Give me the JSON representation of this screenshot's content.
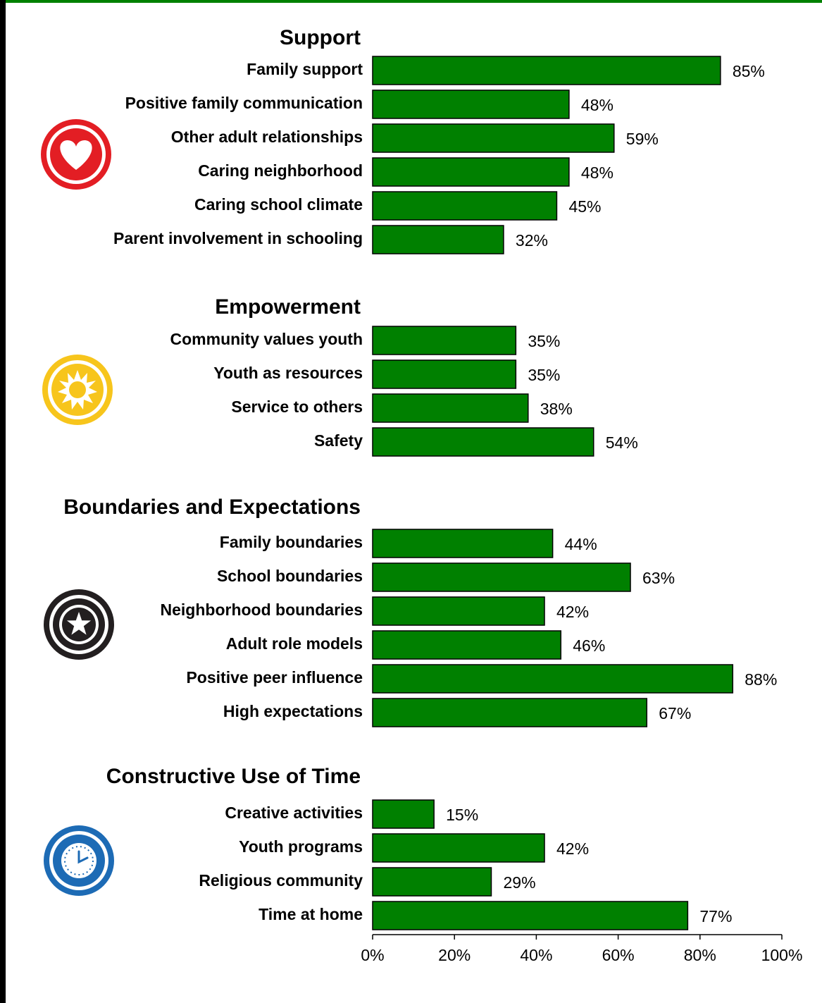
{
  "chart_data": {
    "type": "bar",
    "color": "#008000",
    "groups": [
      {
        "title": "Support",
        "categories": [
          "Family support",
          "Positive family communication",
          "Other adult relationships",
          "Caring neighborhood",
          "Caring school climate",
          "Parent involvement in schooling"
        ],
        "values": [
          85,
          48,
          59,
          48,
          45,
          32
        ],
        "value_labels": [
          "85%",
          "48%",
          "59%",
          "48%",
          "45%",
          "32%"
        ]
      },
      {
        "title": "Empowerment",
        "categories": [
          "Community values youth",
          "Youth as resources",
          "Service to others",
          "Safety"
        ],
        "values": [
          35,
          35,
          38,
          54
        ],
        "value_labels": [
          "35%",
          "35%",
          "38%",
          "54%"
        ]
      },
      {
        "title": "Boundaries and Expectations",
        "categories": [
          "Family boundaries",
          "School boundaries",
          "Neighborhood boundaries",
          "Adult role models",
          "Positive peer influence",
          "High expectations"
        ],
        "values": [
          44,
          63,
          42,
          46,
          88,
          67
        ],
        "value_labels": [
          "44%",
          "63%",
          "42%",
          "46%",
          "88%",
          "67%"
        ]
      },
      {
        "title": "Constructive Use of Time",
        "categories": [
          "Creative activities",
          "Youth programs",
          "Religious community",
          "Time at home"
        ],
        "values": [
          15,
          42,
          29,
          77
        ],
        "value_labels": [
          "15%",
          "42%",
          "29%",
          "77%"
        ]
      }
    ],
    "xlim": [
      0,
      100
    ],
    "xticks": [
      {
        "value": 0,
        "label": "0%"
      },
      {
        "value": 20,
        "label": "20%"
      },
      {
        "value": 40,
        "label": "40%"
      },
      {
        "value": 60,
        "label": "60%"
      },
      {
        "value": 80,
        "label": "80%"
      },
      {
        "value": 100,
        "label": "100%"
      }
    ]
  }
}
